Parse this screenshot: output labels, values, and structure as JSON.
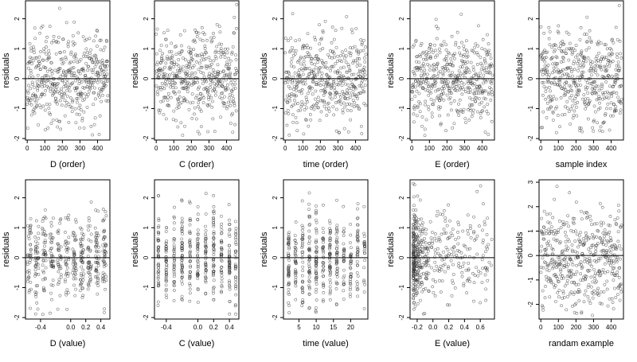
{
  "chart_data": [
    {
      "type": "scatter",
      "row": 0,
      "col": 0,
      "xlabel": "D (order)",
      "ylabel": "residuals",
      "xlim": [
        -10,
        470
      ],
      "ylim": [
        -2.05,
        2.6
      ],
      "xticks": [
        0,
        100,
        200,
        300,
        400
      ],
      "xtick_labels": [
        "0",
        "100",
        "200",
        "300",
        "400"
      ],
      "yticks": [
        -2,
        -1,
        0,
        1,
        2
      ],
      "ytick_labels": [
        "-2",
        "-1",
        "0",
        "1",
        "2"
      ],
      "hline": 0,
      "points": {
        "n": 460,
        "x_mode": "index",
        "seed": 11,
        "sd": 0.75,
        "yrange": [
          -1.9,
          2.5
        ]
      }
    },
    {
      "type": "scatter",
      "row": 0,
      "col": 1,
      "xlabel": "C (order)",
      "ylabel": "residuals",
      "xlim": [
        -10,
        470
      ],
      "ylim": [
        -2.05,
        2.6
      ],
      "xticks": [
        0,
        100,
        200,
        300,
        400
      ],
      "xtick_labels": [
        "0",
        "100",
        "200",
        "300",
        "400"
      ],
      "yticks": [
        -2,
        -1,
        0,
        1,
        2
      ],
      "ytick_labels": [
        "-2",
        "-1",
        "0",
        "1",
        "2"
      ],
      "hline": 0,
      "points": {
        "n": 460,
        "x_mode": "index",
        "seed": 23,
        "sd": 0.75,
        "yrange": [
          -1.9,
          2.5
        ]
      }
    },
    {
      "type": "scatter",
      "row": 0,
      "col": 2,
      "xlabel": "time (order)",
      "ylabel": "residuals",
      "xlim": [
        -10,
        470
      ],
      "ylim": [
        -2.05,
        2.6
      ],
      "xticks": [
        0,
        100,
        200,
        300,
        400
      ],
      "xtick_labels": [
        "0",
        "100",
        "200",
        "300",
        "400"
      ],
      "yticks": [
        -2,
        -1,
        0,
        1,
        2
      ],
      "ytick_labels": [
        "-2",
        "-1",
        "0",
        "1",
        "2"
      ],
      "hline": 0,
      "points": {
        "n": 460,
        "x_mode": "index",
        "seed": 37,
        "sd": 0.75,
        "yrange": [
          -1.9,
          2.5
        ]
      }
    },
    {
      "type": "scatter",
      "row": 0,
      "col": 3,
      "xlabel": "E (order)",
      "ylabel": "residuals",
      "xlim": [
        -10,
        470
      ],
      "ylim": [
        -2.05,
        2.6
      ],
      "xticks": [
        0,
        100,
        200,
        300,
        400
      ],
      "xtick_labels": [
        "0",
        "100",
        "200",
        "300",
        "400"
      ],
      "yticks": [
        -2,
        -1,
        0,
        1,
        2
      ],
      "ytick_labels": [
        "-2",
        "-1",
        "0",
        "1",
        "2"
      ],
      "hline": 0,
      "points": {
        "n": 460,
        "x_mode": "index",
        "seed": 41,
        "sd": 0.75,
        "yrange": [
          -1.9,
          2.5
        ]
      }
    },
    {
      "type": "scatter",
      "row": 0,
      "col": 4,
      "xlabel": "sample index",
      "ylabel": "residuals",
      "xlim": [
        -10,
        470
      ],
      "ylim": [
        -2.05,
        2.6
      ],
      "xticks": [
        0,
        100,
        200,
        300,
        400
      ],
      "xtick_labels": [
        "0",
        "100",
        "200",
        "300",
        "400"
      ],
      "yticks": [
        -2,
        -1,
        0,
        1,
        2
      ],
      "ytick_labels": [
        "-2",
        "-1",
        "0",
        "1",
        "2"
      ],
      "hline": 0,
      "points": {
        "n": 460,
        "x_mode": "index",
        "seed": 53,
        "sd": 0.75,
        "yrange": [
          -1.9,
          2.5
        ]
      }
    },
    {
      "type": "scatter",
      "row": 1,
      "col": 0,
      "xlabel": "D (value)",
      "ylabel": "residuals",
      "xlim": [
        -0.6,
        0.52
      ],
      "ylim": [
        -2.05,
        2.6
      ],
      "xticks": [
        -0.4,
        0.0,
        0.2,
        0.4
      ],
      "xtick_labels": [
        "-0.4",
        "0.0",
        "0.2",
        "0.4"
      ],
      "yticks": [
        -2,
        -1,
        0,
        1,
        2
      ],
      "ytick_labels": [
        "-2",
        "-1",
        "0",
        "1",
        "2"
      ],
      "hline": 0,
      "points": {
        "n": 460,
        "x_mode": "levels",
        "levels": [
          -0.55,
          -0.45,
          -0.35,
          -0.25,
          -0.15,
          -0.05,
          0.05,
          0.15,
          0.25,
          0.35,
          0.45
        ],
        "jitter": 0.025,
        "seed": 61,
        "sd": 0.75,
        "yrange": [
          -1.9,
          2.5
        ]
      }
    },
    {
      "type": "scatter",
      "row": 1,
      "col": 1,
      "xlabel": "C (value)",
      "ylabel": "residuals",
      "xlim": [
        -0.55,
        0.52
      ],
      "ylim": [
        -2.05,
        2.6
      ],
      "xticks": [
        -0.4,
        0.0,
        0.2,
        0.4
      ],
      "xtick_labels": [
        "-0.4",
        "0.0",
        "0.2",
        "0.4"
      ],
      "yticks": [
        -2,
        -1,
        0,
        1,
        2
      ],
      "ytick_labels": [
        "-2",
        "-1",
        "0",
        "1",
        "2"
      ],
      "hline": 0,
      "points": {
        "n": 460,
        "x_mode": "levels",
        "levels": [
          -0.5,
          -0.4,
          -0.3,
          -0.2,
          -0.1,
          0.0,
          0.1,
          0.2,
          0.3,
          0.4,
          0.48
        ],
        "jitter": 0.005,
        "seed": 71,
        "sd": 0.75,
        "yrange": [
          -1.9,
          2.5
        ]
      }
    },
    {
      "type": "scatter",
      "row": 1,
      "col": 2,
      "xlabel": "time (value)",
      "ylabel": "residuals",
      "xlim": [
        0.5,
        25
      ],
      "ylim": [
        -2.05,
        2.6
      ],
      "xticks": [
        5,
        10,
        15,
        20
      ],
      "xtick_labels": [
        "5",
        "10",
        "15",
        "20"
      ],
      "yticks": [
        -2,
        -1,
        0,
        1,
        2
      ],
      "ytick_labels": [
        "-2",
        "-1",
        "0",
        "1",
        "2"
      ],
      "hline": 0,
      "points": {
        "n": 460,
        "x_mode": "levels",
        "levels": [
          2,
          4,
          6,
          8,
          10,
          12,
          14,
          16,
          18,
          20,
          22,
          24
        ],
        "jitter": 0.15,
        "seed": 83,
        "sd": 0.75,
        "yrange": [
          -1.9,
          2.5
        ]
      }
    },
    {
      "type": "scatter",
      "row": 1,
      "col": 3,
      "xlabel": "E (value)",
      "ylabel": "residuals",
      "xlim": [
        -0.29,
        0.78
      ],
      "ylim": [
        -2.05,
        2.6
      ],
      "xticks": [
        -0.2,
        0.0,
        0.2,
        0.4,
        0.6
      ],
      "xtick_labels": [
        "-0.2",
        "0.0",
        "0.2",
        "0.4",
        "0.6"
      ],
      "yticks": [
        -2,
        -1,
        0,
        1,
        2
      ],
      "ytick_labels": [
        "-2",
        "-1",
        "0",
        "1",
        "2"
      ],
      "hline": 0,
      "points": {
        "n": 460,
        "x_mode": "skewed",
        "xmin": -0.25,
        "xmax": 0.75,
        "seed": 97,
        "sd": 0.75,
        "yrange": [
          -1.9,
          2.5
        ]
      }
    },
    {
      "type": "scatter",
      "row": 1,
      "col": 4,
      "xlabel": "randam example",
      "ylabel": "residuals",
      "xlim": [
        -10,
        470
      ],
      "ylim": [
        -2.6,
        3.1
      ],
      "xticks": [
        0,
        100,
        200,
        300,
        400
      ],
      "xtick_labels": [
        "0",
        "100",
        "200",
        "300",
        "400"
      ],
      "yticks": [
        -2,
        -1,
        0,
        1,
        2,
        3
      ],
      "ytick_labels": [
        "-2",
        "-1",
        "0",
        "1",
        "2",
        "3"
      ],
      "hline": 0,
      "points": {
        "n": 460,
        "x_mode": "index",
        "seed": 101,
        "sd": 1.0,
        "yrange": [
          -2.5,
          3.0
        ]
      }
    }
  ]
}
